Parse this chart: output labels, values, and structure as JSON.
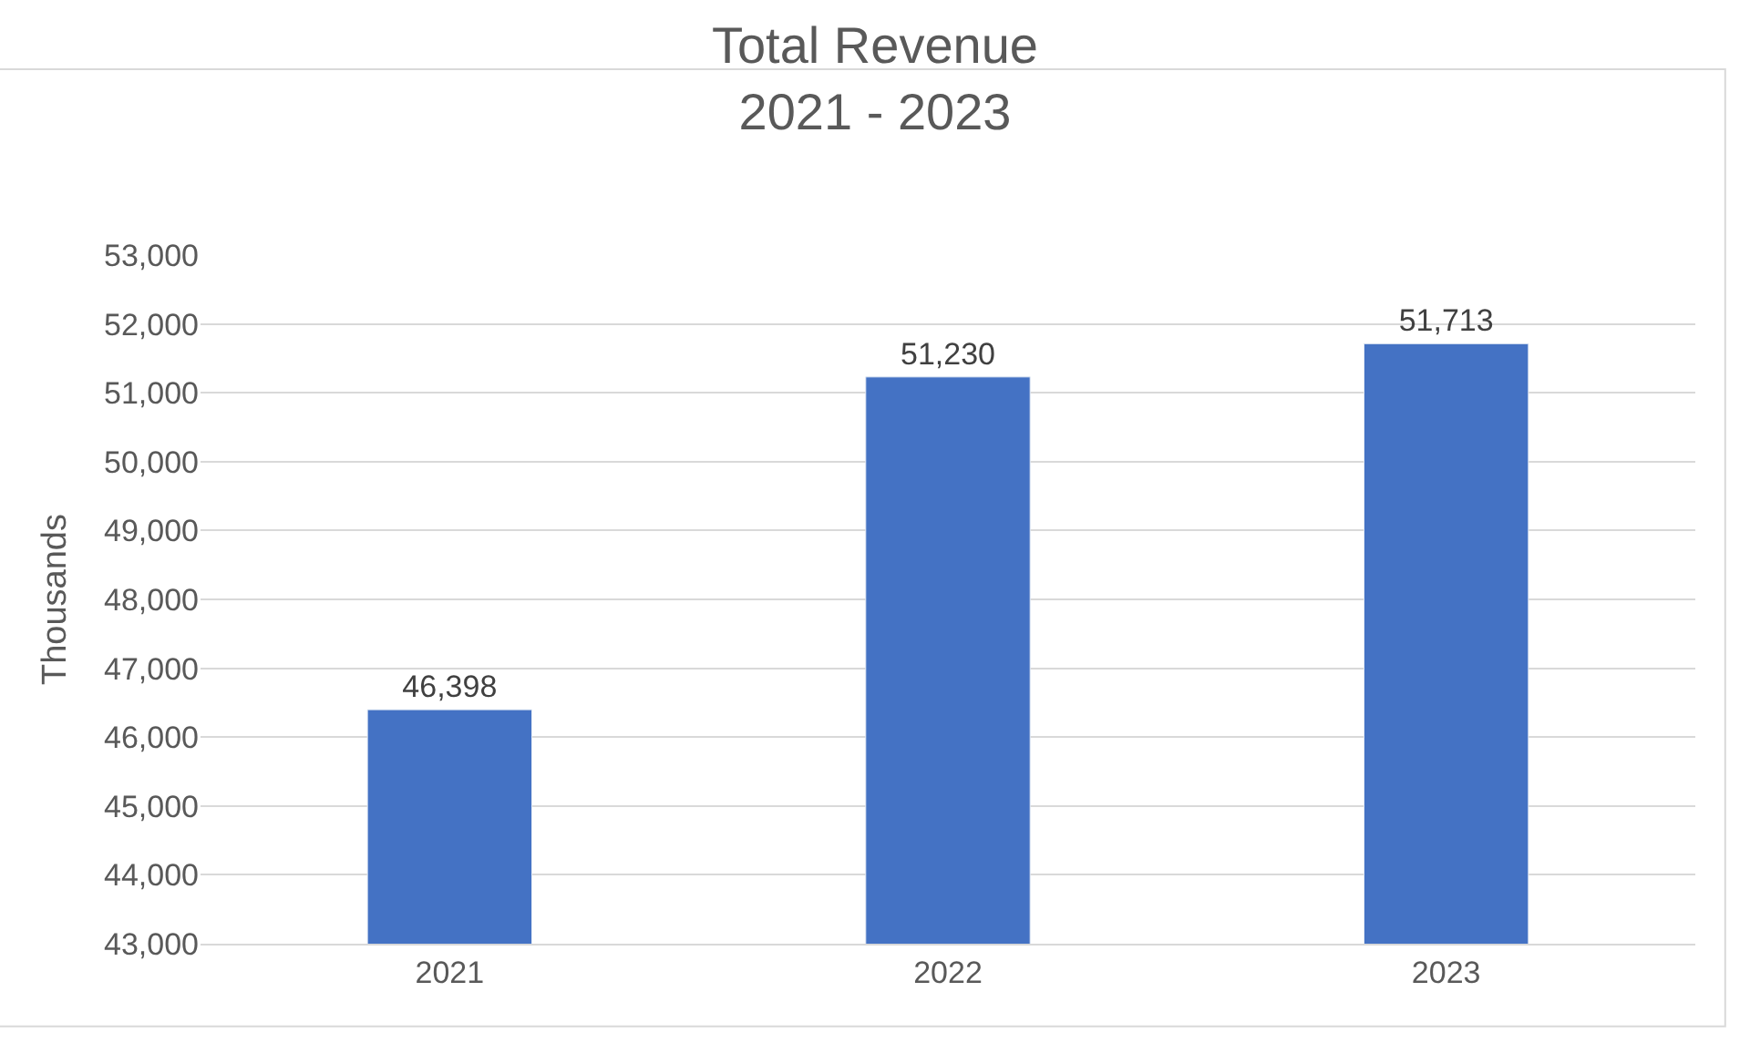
{
  "chart_data": {
    "type": "bar",
    "title": "Total Revenue\n2021 - 2023",
    "ylabel": "Thousands",
    "categories": [
      "2021",
      "2022",
      "2023"
    ],
    "values": [
      46398,
      51230,
      51713
    ],
    "value_labels": [
      "46,398",
      "51,230",
      "51,713"
    ],
    "color": "#4472c4",
    "ylim": [
      43000,
      53000
    ],
    "yticks": [
      {
        "value": 43000,
        "label": "43,000"
      },
      {
        "value": 44000,
        "label": "44,000"
      },
      {
        "value": 45000,
        "label": "45,000"
      },
      {
        "value": 46000,
        "label": "46,000"
      },
      {
        "value": 47000,
        "label": "47,000"
      },
      {
        "value": 48000,
        "label": "48,000"
      },
      {
        "value": 49000,
        "label": "49,000"
      },
      {
        "value": 50000,
        "label": "50,000"
      },
      {
        "value": 51000,
        "label": "51,000"
      },
      {
        "value": 52000,
        "label": "52,000"
      },
      {
        "value": 53000,
        "label": "53,000"
      }
    ],
    "grid": "y",
    "legend": false
  }
}
